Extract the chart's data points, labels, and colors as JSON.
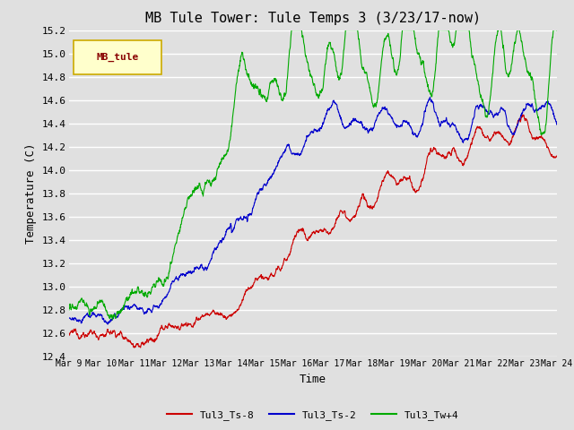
{
  "title": "MB Tule Tower: Tule Temps 3 (3/23/17-now)",
  "ylabel": "Temperature (C)",
  "xlabel": "Time",
  "legend_box_label": "MB_tule",
  "legend_box_color": "#ffffcc",
  "legend_box_edge": "#ccaa00",
  "legend_box_text": "#880000",
  "background_color": "#e0e0e0",
  "plot_bg_color": "#e0e0e0",
  "grid_color": "#ffffff",
  "ylim": [
    12.4,
    15.2
  ],
  "series": [
    {
      "label": "Tul3_Ts-8",
      "color": "#cc0000"
    },
    {
      "label": "Tul3_Ts-2",
      "color": "#0000cc"
    },
    {
      "label": "Tul3_Tw+4",
      "color": "#00aa00"
    }
  ],
  "xtick_labels": [
    "Mar 9",
    "Mar 10",
    "Mar 11",
    "Mar 12",
    "Mar 13",
    "Mar 14",
    "Mar 15",
    "Mar 16",
    "Mar 17",
    "Mar 18",
    "Mar 19",
    "Mar 20",
    "Mar 21",
    "Mar 22",
    "Mar 23",
    "Mar 24"
  ],
  "ytick_values": [
    12.4,
    12.6,
    12.8,
    13.0,
    13.2,
    13.4,
    13.6,
    13.8,
    14.0,
    14.2,
    14.4,
    14.6,
    14.8,
    15.0,
    15.2
  ],
  "title_fontsize": 11,
  "axis_fontsize": 9,
  "tick_fontsize": 8,
  "linewidth": 0.8
}
